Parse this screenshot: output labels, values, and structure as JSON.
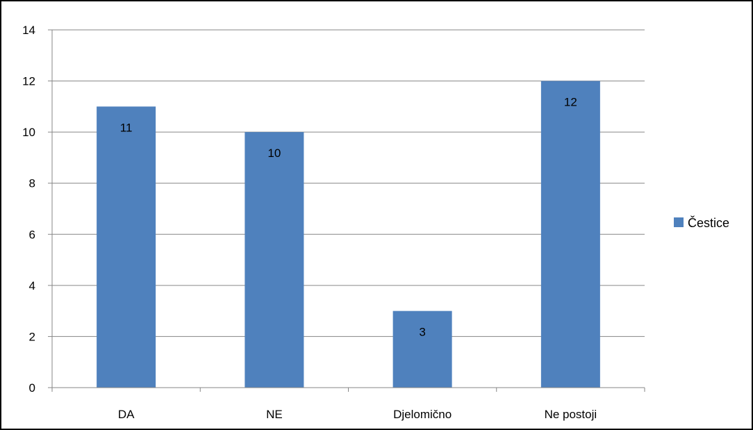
{
  "chart_data": {
    "type": "bar",
    "categories": [
      "DA",
      "NE",
      "Djelomično",
      "Ne postoji"
    ],
    "series": [
      {
        "name": "Čestice",
        "values": [
          11,
          10,
          3,
          12
        ]
      }
    ],
    "y_ticks": [
      "0",
      "2",
      "4",
      "6",
      "8",
      "10",
      "12",
      "14"
    ],
    "ylim": [
      0,
      14
    ],
    "grid": true,
    "legend_position": "right",
    "data_labels": [
      "11",
      "10",
      "3",
      "12"
    ],
    "colors": {
      "bar": "#4F81BD",
      "grid": "#868686",
      "axis": "#868686",
      "border": "#000000"
    }
  }
}
